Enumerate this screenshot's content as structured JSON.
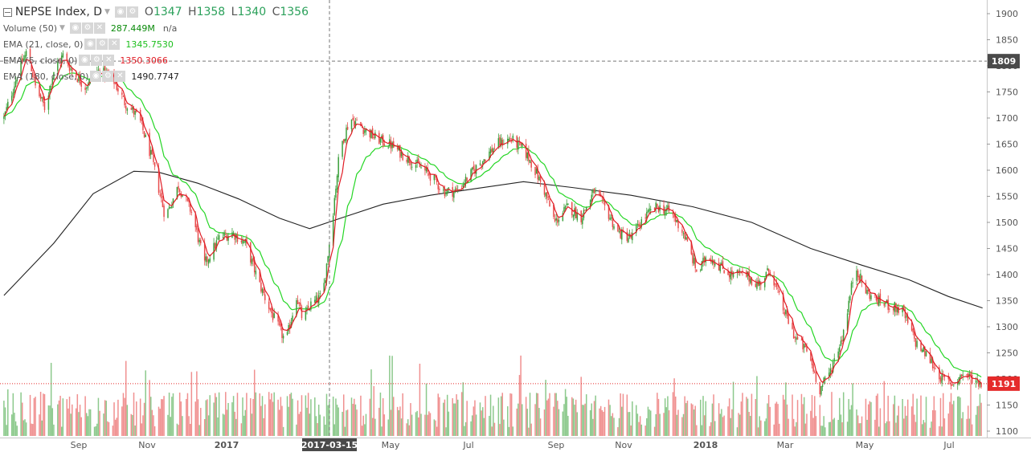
{
  "header": {
    "symbol": "NEPSE Index, D",
    "open_label": "O",
    "open": "1347",
    "high_label": "H",
    "high": "1358",
    "low_label": "L",
    "low": "1340",
    "close_label": "C",
    "close": "1356"
  },
  "indicators": [
    {
      "label": "Volume (50)",
      "value": "287.449M",
      "extra": "n/a",
      "color": "#0a8a0a"
    },
    {
      "label": "EMA (21, close, 0)",
      "value": "1345.7530",
      "color": "#25d625"
    },
    {
      "label": "EMA (5, close, 0)",
      "value": "1350.3066",
      "color": "#e01b24"
    },
    {
      "label": "EMA (180, close, 0)",
      "value": "1490.7747",
      "color": "#222222"
    }
  ],
  "icons": [
    "eye-icon",
    "settings-icon",
    "close-icon"
  ],
  "crosshair": {
    "price_label": "1809",
    "date_label": "2017-03-15"
  },
  "last_price_label": "1191",
  "colors": {
    "up": "#3b9f3b",
    "down": "#e84c4c",
    "vol_up": "#8cc98c",
    "vol_down": "#f09090",
    "ema5": "#e01b24",
    "ema21": "#25d625",
    "ema180": "#222222",
    "last": "#e52b2b"
  },
  "chart_data": {
    "type": "candlestick",
    "y_axis": {
      "min": 1100,
      "max": 1900,
      "ticks": [
        1900,
        1850,
        1800,
        1750,
        1700,
        1650,
        1600,
        1550,
        1500,
        1450,
        1400,
        1350,
        1300,
        1250,
        1200,
        1150,
        1100
      ],
      "position": "right"
    },
    "x_axis": {
      "labels": [
        "Sep",
        "Nov",
        "2017",
        "Mar",
        "May",
        "Jul",
        "Sep",
        "Nov",
        "2018",
        "Mar",
        "May",
        "Jul"
      ]
    },
    "close_series": [
      {
        "date": "2016-07-25",
        "close": 1700
      },
      {
        "date": "2016-08-05",
        "close": 1790
      },
      {
        "date": "2016-08-12",
        "close": 1830
      },
      {
        "date": "2016-08-18",
        "close": 1760
      },
      {
        "date": "2016-08-25",
        "close": 1720
      },
      {
        "date": "2016-09-01",
        "close": 1790
      },
      {
        "date": "2016-09-08",
        "close": 1820
      },
      {
        "date": "2016-09-15",
        "close": 1790
      },
      {
        "date": "2016-09-25",
        "close": 1760
      },
      {
        "date": "2016-10-05",
        "close": 1790
      },
      {
        "date": "2016-10-15",
        "close": 1780
      },
      {
        "date": "2016-10-25",
        "close": 1730
      },
      {
        "date": "2016-11-05",
        "close": 1700
      },
      {
        "date": "2016-11-15",
        "close": 1620
      },
      {
        "date": "2016-11-25",
        "close": 1510
      },
      {
        "date": "2016-12-05",
        "close": 1570
      },
      {
        "date": "2016-12-15",
        "close": 1520
      },
      {
        "date": "2016-12-25",
        "close": 1420
      },
      {
        "date": "2017-01-05",
        "close": 1470
      },
      {
        "date": "2017-01-15",
        "close": 1480
      },
      {
        "date": "2017-01-25",
        "close": 1460
      },
      {
        "date": "2017-02-05",
        "close": 1380
      },
      {
        "date": "2017-02-15",
        "close": 1320
      },
      {
        "date": "2017-02-25",
        "close": 1270
      },
      {
        "date": "2017-03-05",
        "close": 1360
      },
      {
        "date": "2017-03-10",
        "close": 1310
      },
      {
        "date": "2017-03-15",
        "close": 1340
      },
      {
        "date": "2017-03-25",
        "close": 1360
      },
      {
        "date": "2017-04-01",
        "close": 1500
      },
      {
        "date": "2017-04-07",
        "close": 1640
      },
      {
        "date": "2017-04-15",
        "close": 1700
      },
      {
        "date": "2017-04-25",
        "close": 1680
      },
      {
        "date": "2017-05-05",
        "close": 1660
      },
      {
        "date": "2017-05-15",
        "close": 1650
      },
      {
        "date": "2017-05-25",
        "close": 1630
      },
      {
        "date": "2017-06-05",
        "close": 1610
      },
      {
        "date": "2017-06-15",
        "close": 1590
      },
      {
        "date": "2017-06-25",
        "close": 1560
      },
      {
        "date": "2017-07-05",
        "close": 1560
      },
      {
        "date": "2017-07-15",
        "close": 1590
      },
      {
        "date": "2017-07-25",
        "close": 1620
      },
      {
        "date": "2017-08-05",
        "close": 1650
      },
      {
        "date": "2017-08-15",
        "close": 1660
      },
      {
        "date": "2017-08-25",
        "close": 1640
      },
      {
        "date": "2017-09-01",
        "close": 1610
      },
      {
        "date": "2017-09-10",
        "close": 1560
      },
      {
        "date": "2017-09-18",
        "close": 1500
      },
      {
        "date": "2017-09-28",
        "close": 1530
      },
      {
        "date": "2017-10-08",
        "close": 1510
      },
      {
        "date": "2017-10-18",
        "close": 1560
      },
      {
        "date": "2017-10-28",
        "close": 1520
      },
      {
        "date": "2017-11-05",
        "close": 1480
      },
      {
        "date": "2017-11-15",
        "close": 1470
      },
      {
        "date": "2017-11-25",
        "close": 1510
      },
      {
        "date": "2017-12-05",
        "close": 1530
      },
      {
        "date": "2017-12-15",
        "close": 1520
      },
      {
        "date": "2017-12-25",
        "close": 1480
      },
      {
        "date": "2018-01-05",
        "close": 1400
      },
      {
        "date": "2018-01-12",
        "close": 1440
      },
      {
        "date": "2018-01-20",
        "close": 1420
      },
      {
        "date": "2018-01-30",
        "close": 1400
      },
      {
        "date": "2018-02-10",
        "close": 1400
      },
      {
        "date": "2018-02-20",
        "close": 1380
      },
      {
        "date": "2018-03-01",
        "close": 1410
      },
      {
        "date": "2018-03-10",
        "close": 1340
      },
      {
        "date": "2018-03-20",
        "close": 1280
      },
      {
        "date": "2018-03-30",
        "close": 1250
      },
      {
        "date": "2018-04-08",
        "close": 1180
      },
      {
        "date": "2018-04-15",
        "close": 1210
      },
      {
        "date": "2018-04-25",
        "close": 1280
      },
      {
        "date": "2018-05-01",
        "close": 1360
      },
      {
        "date": "2018-05-05",
        "close": 1420
      },
      {
        "date": "2018-05-12",
        "close": 1370
      },
      {
        "date": "2018-05-22",
        "close": 1350
      },
      {
        "date": "2018-06-01",
        "close": 1340
      },
      {
        "date": "2018-06-10",
        "close": 1330
      },
      {
        "date": "2018-06-20",
        "close": 1270
      },
      {
        "date": "2018-06-30",
        "close": 1240
      },
      {
        "date": "2018-07-10",
        "close": 1200
      },
      {
        "date": "2018-07-18",
        "close": 1190
      },
      {
        "date": "2018-07-26",
        "close": 1210
      },
      {
        "date": "2018-08-03",
        "close": 1200
      },
      {
        "date": "2018-08-10",
        "close": 1191
      }
    ],
    "ema180_series": [
      {
        "date": "2016-07-25",
        "value": 1360
      },
      {
        "date": "2016-09-01",
        "value": 1460
      },
      {
        "date": "2016-10-01",
        "value": 1555
      },
      {
        "date": "2016-11-01",
        "value": 1598
      },
      {
        "date": "2016-11-20",
        "value": 1596
      },
      {
        "date": "2016-12-20",
        "value": 1575
      },
      {
        "date": "2017-01-20",
        "value": 1545
      },
      {
        "date": "2017-02-20",
        "value": 1508
      },
      {
        "date": "2017-03-15",
        "value": 1488
      },
      {
        "date": "2017-04-10",
        "value": 1510
      },
      {
        "date": "2017-05-10",
        "value": 1535
      },
      {
        "date": "2017-06-15",
        "value": 1552
      },
      {
        "date": "2017-07-20",
        "value": 1565
      },
      {
        "date": "2017-08-25",
        "value": 1578
      },
      {
        "date": "2017-10-01",
        "value": 1567
      },
      {
        "date": "2017-11-15",
        "value": 1552
      },
      {
        "date": "2018-01-01",
        "value": 1530
      },
      {
        "date": "2018-02-15",
        "value": 1500
      },
      {
        "date": "2018-04-01",
        "value": 1450
      },
      {
        "date": "2018-05-10",
        "value": 1418
      },
      {
        "date": "2018-06-15",
        "value": 1390
      },
      {
        "date": "2018-07-15",
        "value": 1358
      },
      {
        "date": "2018-08-10",
        "value": 1336
      }
    ]
  }
}
